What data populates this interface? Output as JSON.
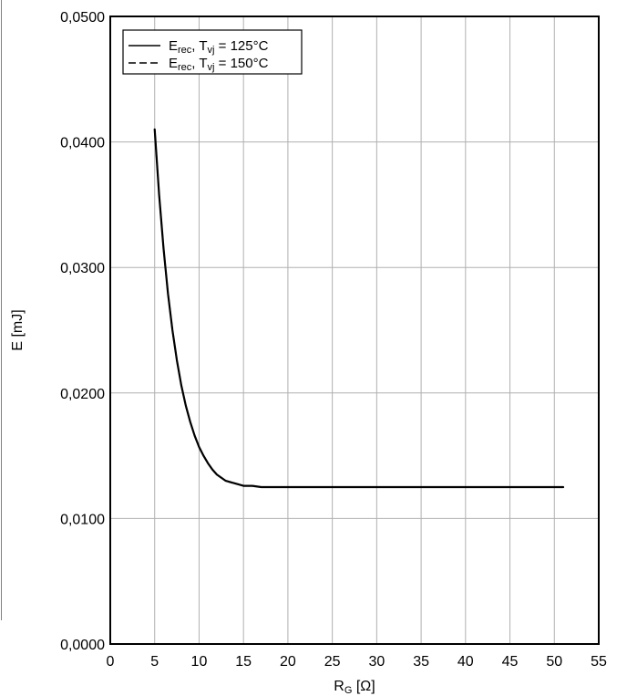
{
  "chart_data": {
    "type": "line",
    "xlabel": "R",
    "xlabel_sub": "G",
    "xlabel_unit": " [Ω]",
    "ylabel": "E [mJ]",
    "xlim": [
      0,
      55
    ],
    "ylim": [
      0.0,
      0.05
    ],
    "x_ticks": [
      0,
      5,
      10,
      15,
      20,
      25,
      30,
      35,
      40,
      45,
      50,
      55
    ],
    "x_tick_labels": [
      "0",
      "5",
      "10",
      "15",
      "20",
      "25",
      "30",
      "35",
      "40",
      "45",
      "50",
      "55"
    ],
    "y_ticks": [
      0.0,
      0.01,
      0.02,
      0.03,
      0.04,
      0.05
    ],
    "y_tick_labels": [
      "0,0000",
      "0,0100",
      "0,0200",
      "0,0300",
      "0,0400",
      "0,0500"
    ],
    "grid": true,
    "legend_position": "top-left",
    "series": [
      {
        "name": "Erec, Tvj = 125°C",
        "legend": {
          "main": "E",
          "sub": "rec",
          "mid": ", T",
          "sub2": "vj",
          "tail": " = 125°C"
        },
        "line_style": "solid",
        "color": "#000000",
        "x": [
          5,
          5.5,
          6,
          6.5,
          7,
          7.5,
          8,
          8.5,
          9,
          9.5,
          10,
          10.5,
          11,
          11.5,
          12,
          13,
          14,
          15,
          16,
          17,
          18,
          20,
          22,
          25,
          30,
          35,
          40,
          45,
          50,
          51
        ],
        "y": [
          0.041,
          0.0358,
          0.0315,
          0.0279,
          0.025,
          0.0226,
          0.0206,
          0.019,
          0.0177,
          0.0166,
          0.0157,
          0.015,
          0.0144,
          0.0139,
          0.0135,
          0.013,
          0.0128,
          0.0126,
          0.0126,
          0.0125,
          0.0125,
          0.0125,
          0.0125,
          0.0125,
          0.0125,
          0.0125,
          0.0125,
          0.0125,
          0.0125,
          0.0125
        ]
      },
      {
        "name": "Erec, Tvj = 150°C",
        "legend": {
          "main": "E",
          "sub": "rec",
          "mid": ", T",
          "sub2": "vj",
          "tail": " = 150°C"
        },
        "line_style": "dashed",
        "color": "#000000",
        "x": [
          5,
          5.5,
          6,
          6.5,
          7,
          7.5,
          8,
          8.5,
          9,
          9.5,
          10,
          10.5,
          11,
          11.5,
          12,
          13,
          14,
          15,
          16,
          17,
          18,
          20,
          22,
          25,
          30,
          35,
          40,
          45,
          50,
          51
        ],
        "y": [
          0.041,
          0.0358,
          0.0315,
          0.0279,
          0.025,
          0.0226,
          0.0206,
          0.019,
          0.0177,
          0.0166,
          0.0157,
          0.015,
          0.0144,
          0.0139,
          0.0135,
          0.013,
          0.0128,
          0.0126,
          0.0126,
          0.0125,
          0.0125,
          0.0125,
          0.0125,
          0.0125,
          0.0125,
          0.0125,
          0.0125,
          0.0125,
          0.0125,
          0.0125
        ]
      }
    ],
    "colors": {
      "background": "#ffffff",
      "grid": "#b0b0b0",
      "axes": "#000000",
      "left_edge_line": "#808080"
    }
  }
}
